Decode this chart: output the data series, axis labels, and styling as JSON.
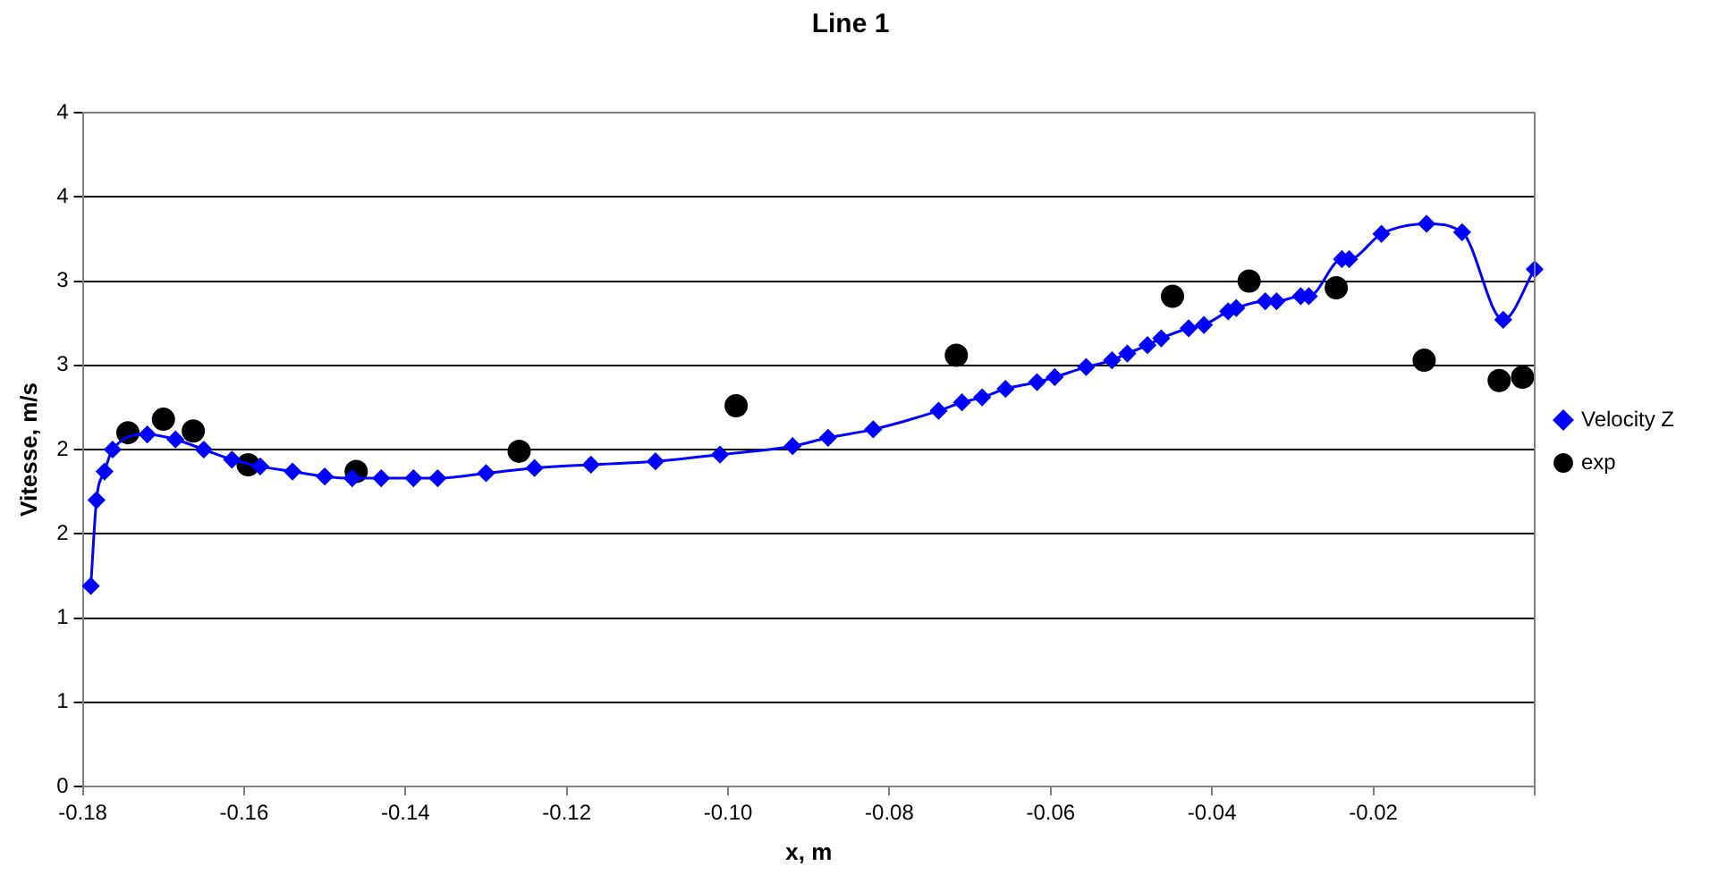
{
  "chart_data": {
    "type": "line",
    "title": "Line 1",
    "xlabel": "x, m",
    "ylabel": "Vitesse, m/s",
    "xlim": [
      -0.18,
      0
    ],
    "xticks": [
      -0.18,
      -0.16,
      -0.14,
      -0.12,
      {
        "value": -0.1,
        "label": "-0.10"
      },
      -0.08,
      -0.06,
      -0.04,
      -0.02,
      {
        "value": 0,
        "label": null
      }
    ],
    "ylim": [
      0,
      4
    ],
    "yticks": [
      0,
      {
        "value": 0.5,
        "label": "1"
      },
      1,
      {
        "value": 1.5,
        "label": "2"
      },
      2,
      {
        "value": 2.5,
        "label": "3"
      },
      3,
      {
        "value": 3.5,
        "label": "4"
      },
      4
    ],
    "grid": "y",
    "legend": "right",
    "series": [
      {
        "name": "Velocity Z",
        "color": "#0000ff",
        "marker": "diamond",
        "line_style": "solid",
        "x": [
          -0.179,
          -0.1783,
          -0.1773,
          -0.1763,
          -0.172,
          -0.1685,
          -0.165,
          -0.1615,
          -0.158,
          -0.154,
          -0.15,
          -0.1466,
          -0.143,
          -0.139,
          -0.136,
          -0.13,
          -0.124,
          -0.117,
          -0.109,
          -0.101,
          -0.092,
          -0.0876,
          -0.082,
          -0.0739,
          -0.071,
          -0.0685,
          -0.0656,
          -0.0617,
          -0.0595,
          -0.0556,
          -0.0524,
          -0.0505,
          -0.048,
          -0.0463,
          -0.0429,
          -0.041,
          -0.038,
          -0.037,
          -0.0334,
          -0.032,
          -0.029,
          -0.028,
          -0.0239,
          -0.023,
          -0.019,
          -0.0134,
          -0.009,
          -0.0039,
          0
        ],
        "values": [
          1.19,
          1.7,
          1.87,
          2.0,
          2.09,
          2.06,
          2.0,
          1.94,
          1.9,
          1.87,
          1.84,
          1.83,
          1.83,
          1.83,
          1.83,
          1.86,
          1.89,
          1.91,
          1.93,
          1.97,
          2.02,
          2.07,
          2.12,
          2.23,
          2.28,
          2.31,
          2.36,
          2.4,
          2.43,
          2.49,
          2.53,
          2.57,
          2.62,
          2.66,
          2.72,
          2.74,
          2.82,
          2.84,
          2.88,
          2.88,
          2.91,
          2.91,
          3.13,
          3.13,
          3.28,
          3.34,
          3.29,
          2.77,
          3.07
        ]
      },
      {
        "name": "exp",
        "type": "scatter",
        "color": "#000000",
        "marker": "circle",
        "x": [
          -0.1744,
          -0.17,
          -0.1663,
          -0.1595,
          -0.1461,
          -0.1259,
          -0.099,
          -0.0717,
          -0.0449,
          -0.0354,
          -0.0246,
          -0.0137,
          -0.0044,
          -0.0015
        ],
        "values": [
          2.1,
          2.18,
          2.11,
          1.91,
          1.87,
          1.99,
          2.26,
          2.56,
          2.91,
          3.0,
          2.96,
          2.53,
          2.41,
          2.43
        ]
      }
    ]
  }
}
